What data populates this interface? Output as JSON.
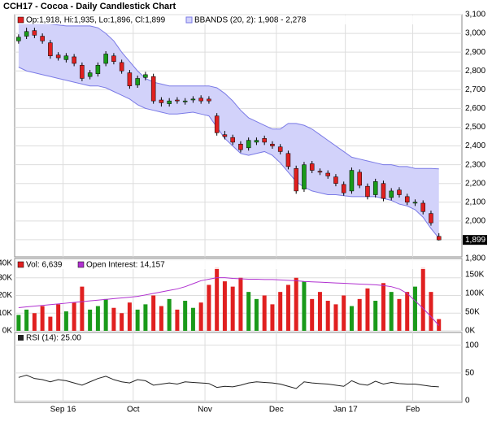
{
  "chart_data": [
    {
      "type": "candlestick",
      "title": "CCH17 - Cocoa - Daily Candlestick Chart",
      "legend": "Op:1,918, Hi:1,935, Lo:1,896, Cl:1,899",
      "last_label": "1,899",
      "up_color": "#1a9a1a",
      "down_color": "#e02020",
      "open": [
        2960,
        2985,
        3015,
        2985,
        2950,
        2885,
        2860,
        2875,
        2830,
        2770,
        2785,
        2840,
        2880,
        2845,
        2790,
        2725,
        2765,
        2770,
        2645,
        2625,
        2645,
        2635,
        2645,
        2655,
        2650,
        2560,
        2460,
        2445,
        2410,
        2390,
        2420,
        2440,
        2410,
        2395,
        2360,
        2280,
        2170,
        2305,
        2265,
        2255,
        2235,
        2195,
        2160,
        2260,
        2185,
        2140,
        2200,
        2125,
        2165,
        2130,
        2095,
        2095,
        2040,
        1918
      ],
      "high": [
        2995,
        3030,
        3030,
        3000,
        2965,
        2900,
        2895,
        2890,
        2845,
        2805,
        2845,
        2905,
        2895,
        2860,
        2805,
        2775,
        2795,
        2785,
        2660,
        2655,
        2660,
        2655,
        2665,
        2670,
        2665,
        2575,
        2480,
        2460,
        2425,
        2445,
        2445,
        2455,
        2425,
        2410,
        2375,
        2295,
        2315,
        2320,
        2280,
        2270,
        2250,
        2210,
        2285,
        2275,
        2200,
        2225,
        2215,
        2175,
        2180,
        2145,
        2115,
        2110,
        2055,
        1935
      ],
      "low": [
        2945,
        2970,
        2975,
        2945,
        2865,
        2855,
        2845,
        2825,
        2745,
        2755,
        2770,
        2825,
        2835,
        2785,
        2705,
        2710,
        2750,
        2625,
        2610,
        2610,
        2625,
        2620,
        2630,
        2625,
        2625,
        2455,
        2435,
        2405,
        2365,
        2375,
        2405,
        2405,
        2385,
        2355,
        2275,
        2145,
        2155,
        2255,
        2245,
        2225,
        2185,
        2135,
        2145,
        2175,
        2115,
        2125,
        2105,
        2110,
        2125,
        2085,
        2080,
        2035,
        1975,
        1896
      ],
      "close": [
        2980,
        3010,
        2990,
        2960,
        2880,
        2870,
        2880,
        2840,
        2760,
        2790,
        2830,
        2890,
        2850,
        2800,
        2720,
        2760,
        2780,
        2640,
        2630,
        2640,
        2640,
        2640,
        2650,
        2640,
        2640,
        2470,
        2450,
        2420,
        2380,
        2430,
        2430,
        2420,
        2400,
        2370,
        2290,
        2160,
        2300,
        2270,
        2260,
        2240,
        2200,
        2150,
        2270,
        2190,
        2130,
        2210,
        2120,
        2160,
        2140,
        2100,
        2100,
        2050,
        1990,
        1899
      ],
      "bbands": {
        "name": "BBANDS (20, 2): 1,908 - 2,278",
        "color": "#7a7ae6",
        "fill": "#d2d2fa",
        "upper": [
          3050,
          3050,
          3050,
          3050,
          3050,
          3045,
          3040,
          3040,
          3040,
          3040,
          3030,
          3000,
          2960,
          2900,
          2850,
          2800,
          2760,
          2740,
          2730,
          2720,
          2720,
          2720,
          2720,
          2720,
          2720,
          2710,
          2680,
          2640,
          2590,
          2550,
          2530,
          2510,
          2490,
          2490,
          2520,
          2520,
          2510,
          2490,
          2460,
          2430,
          2400,
          2370,
          2340,
          2330,
          2320,
          2310,
          2300,
          2300,
          2290,
          2290,
          2280,
          2280,
          2280,
          2278
        ],
        "lower": [
          2820,
          2800,
          2790,
          2780,
          2770,
          2760,
          2750,
          2740,
          2730,
          2720,
          2720,
          2710,
          2690,
          2670,
          2650,
          2620,
          2600,
          2590,
          2580,
          2570,
          2570,
          2575,
          2580,
          2570,
          2560,
          2500,
          2440,
          2400,
          2360,
          2350,
          2360,
          2370,
          2350,
          2310,
          2260,
          2210,
          2180,
          2160,
          2150,
          2140,
          2140,
          2135,
          2130,
          2130,
          2130,
          2130,
          2120,
          2110,
          2090,
          2080,
          2060,
          2020,
          1960,
          1908
        ]
      },
      "xlim": [
        -0.5,
        55.9
      ],
      "xticks": [
        {
          "value": 5.6,
          "label": "Sep 16"
        },
        {
          "value": 14.45,
          "label": "Oct"
        },
        {
          "value": 23.5,
          "label": "Nov"
        },
        {
          "value": 32.5,
          "label": "Dec"
        },
        {
          "value": 41.2,
          "label": "Jan 17"
        },
        {
          "value": 49.7,
          "label": "Feb"
        }
      ],
      "ylim": [
        1800,
        3100
      ],
      "yticks": [
        {
          "value": 1800,
          "label": "1,800"
        },
        {
          "value": 1900,
          "label": "1,900"
        },
        {
          "value": 2000,
          "label": "2,000"
        },
        {
          "value": 2100,
          "label": "2,100"
        },
        {
          "value": 2200,
          "label": "2,200"
        },
        {
          "value": 2300,
          "label": "2,300"
        },
        {
          "value": 2400,
          "label": "2,400"
        },
        {
          "value": 2500,
          "label": "2,500"
        },
        {
          "value": 2600,
          "label": "2,600"
        },
        {
          "value": 2700,
          "label": "2,700"
        },
        {
          "value": 2800,
          "label": "2,800"
        },
        {
          "value": 2900,
          "label": "2,900"
        },
        {
          "value": 3000,
          "label": "3,000"
        },
        {
          "value": 3100,
          "label": "3,100"
        }
      ],
      "grid": true
    },
    {
      "type": "bar",
      "legend": "Vol: 6,639",
      "values": [
        9000,
        12000,
        10000,
        14000,
        8000,
        15000,
        11000,
        16000,
        25000,
        12000,
        14000,
        18000,
        13000,
        10000,
        16000,
        12000,
        15000,
        20000,
        14000,
        18000,
        12000,
        17000,
        13000,
        16000,
        26000,
        36000,
        28000,
        25000,
        30000,
        22000,
        18000,
        20000,
        15000,
        22000,
        26000,
        30000,
        28000,
        18000,
        22000,
        17000,
        15000,
        20000,
        14000,
        18000,
        24000,
        17000,
        27000,
        22000,
        18000,
        22000,
        25000,
        36000,
        22000,
        6639
      ],
      "series": [
        {
          "name": "Open Interest: 14,157",
          "color": "#b030d0",
          "axis": "y2",
          "values": [
            62000,
            64000,
            66000,
            68000,
            70000,
            72000,
            74000,
            76000,
            78000,
            80000,
            82000,
            84000,
            86000,
            88000,
            90000,
            92000,
            96000,
            100000,
            104000,
            108000,
            112000,
            118000,
            126000,
            134000,
            138000,
            142000,
            142000,
            140000,
            139000,
            138000,
            138000,
            137000,
            137000,
            136000,
            135000,
            134000,
            132000,
            131000,
            130000,
            129000,
            128000,
            127000,
            126000,
            125000,
            124000,
            123000,
            121000,
            118000,
            112000,
            100000,
            80000,
            60000,
            38000,
            14157
          ]
        }
      ],
      "ylim": [
        0,
        40000
      ],
      "yticks": [
        {
          "value": 0,
          "label": "0K"
        },
        {
          "value": 10000,
          "label": "10K"
        },
        {
          "value": 20000,
          "label": "20K"
        },
        {
          "value": 30000,
          "label": "30K"
        },
        {
          "value": 40000,
          "label": "40K"
        }
      ],
      "y2lim": [
        0,
        189000
      ],
      "y2ticks": [
        {
          "value": 0,
          "label": "0K"
        },
        {
          "value": 50000,
          "label": "50K"
        },
        {
          "value": 100000,
          "label": "100K"
        },
        {
          "value": 150000,
          "label": "150K"
        }
      ]
    },
    {
      "type": "line",
      "legend": "RSI (14): 25.00",
      "color": "#222222",
      "values": [
        42,
        46,
        40,
        38,
        34,
        38,
        36,
        32,
        28,
        34,
        40,
        44,
        38,
        34,
        32,
        38,
        36,
        28,
        30,
        32,
        30,
        34,
        33,
        32,
        31,
        24,
        26,
        25,
        28,
        32,
        34,
        33,
        32,
        30,
        26,
        22,
        34,
        32,
        31,
        30,
        28,
        26,
        36,
        30,
        28,
        35,
        30,
        33,
        31,
        30,
        30,
        28,
        26,
        25
      ],
      "ylim": [
        0,
        120
      ],
      "yticks": [
        0,
        50,
        100
      ]
    }
  ]
}
